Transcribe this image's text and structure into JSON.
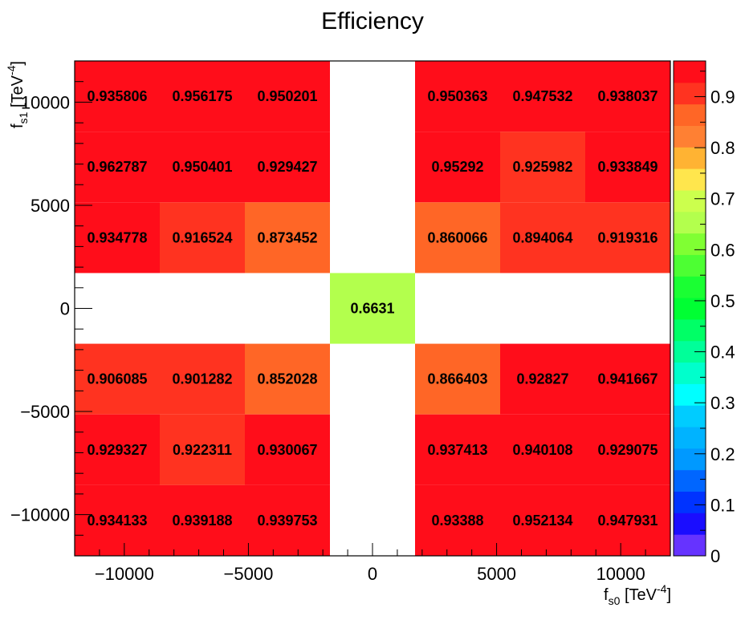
{
  "chart_data": {
    "type": "heatmap",
    "title": "Efficiency",
    "xlabel": "f_{s0} [TeV^{-4}]",
    "ylabel": "f_{s1} [TeV^{-4}]",
    "xlabel_parts": {
      "main": "f",
      "sub": "s0",
      "bracket": " [TeV",
      "sup": "-4",
      "close": "]"
    },
    "ylabel_parts": {
      "main": "f",
      "sub": "s1",
      "bracket": " [TeV",
      "sup": "-4",
      "close": "]"
    },
    "xlim": [
      -12000,
      12000
    ],
    "ylim": [
      -12000,
      12000
    ],
    "zlim": [
      0,
      0.97
    ],
    "x_ticks": [
      -10000,
      -5000,
      0,
      5000,
      10000
    ],
    "x_tick_labels": [
      "−10000",
      "−5000",
      "0",
      "5000",
      "10000"
    ],
    "y_ticks": [
      -10000,
      -5000,
      0,
      5000,
      10000
    ],
    "y_tick_labels": [
      "−10000",
      "−5000",
      "0",
      "5000",
      "10000"
    ],
    "z_ticks": [
      0,
      0.1,
      0.2,
      0.3,
      0.4,
      0.5,
      0.6,
      0.7,
      0.8,
      0.9
    ],
    "z_tick_labels": [
      "0",
      "0.1",
      "0.2",
      "0.3",
      "0.4",
      "0.5",
      "0.6",
      "0.7",
      "0.8",
      "0.9"
    ],
    "x_bin_edges": [
      -12000,
      -8571.43,
      -5142.86,
      -1714.29,
      1714.29,
      5142.86,
      8571.43,
      12000
    ],
    "y_bin_edges": [
      -12000,
      -8571.43,
      -5142.86,
      -1714.29,
      1714.29,
      5142.86,
      8571.43,
      12000
    ],
    "cells": [
      {
        "xbin": 0,
        "ybin": 6,
        "value": 0.935806,
        "label": "0.935806"
      },
      {
        "xbin": 1,
        "ybin": 6,
        "value": 0.956175,
        "label": "0.956175"
      },
      {
        "xbin": 2,
        "ybin": 6,
        "value": 0.950201,
        "label": "0.950201"
      },
      {
        "xbin": 4,
        "ybin": 6,
        "value": 0.950363,
        "label": "0.950363"
      },
      {
        "xbin": 5,
        "ybin": 6,
        "value": 0.947532,
        "label": "0.947532"
      },
      {
        "xbin": 6,
        "ybin": 6,
        "value": 0.938037,
        "label": "0.938037"
      },
      {
        "xbin": 0,
        "ybin": 5,
        "value": 0.962787,
        "label": "0.962787"
      },
      {
        "xbin": 1,
        "ybin": 5,
        "value": 0.950401,
        "label": "0.950401"
      },
      {
        "xbin": 2,
        "ybin": 5,
        "value": 0.929427,
        "label": "0.929427"
      },
      {
        "xbin": 4,
        "ybin": 5,
        "value": 0.95292,
        "label": "0.95292"
      },
      {
        "xbin": 5,
        "ybin": 5,
        "value": 0.925982,
        "label": "0.925982"
      },
      {
        "xbin": 6,
        "ybin": 5,
        "value": 0.933849,
        "label": "0.933849"
      },
      {
        "xbin": 0,
        "ybin": 4,
        "value": 0.934778,
        "label": "0.934778"
      },
      {
        "xbin": 1,
        "ybin": 4,
        "value": 0.916524,
        "label": "0.916524"
      },
      {
        "xbin": 2,
        "ybin": 4,
        "value": 0.873452,
        "label": "0.873452"
      },
      {
        "xbin": 4,
        "ybin": 4,
        "value": 0.860066,
        "label": "0.860066"
      },
      {
        "xbin": 5,
        "ybin": 4,
        "value": 0.894064,
        "label": "0.894064"
      },
      {
        "xbin": 6,
        "ybin": 4,
        "value": 0.919316,
        "label": "0.919316"
      },
      {
        "xbin": 3,
        "ybin": 3,
        "value": 0.6631,
        "label": "0.6631"
      },
      {
        "xbin": 0,
        "ybin": 2,
        "value": 0.906085,
        "label": "0.906085"
      },
      {
        "xbin": 1,
        "ybin": 2,
        "value": 0.901282,
        "label": "0.901282"
      },
      {
        "xbin": 2,
        "ybin": 2,
        "value": 0.852028,
        "label": "0.852028"
      },
      {
        "xbin": 4,
        "ybin": 2,
        "value": 0.866403,
        "label": "0.866403"
      },
      {
        "xbin": 5,
        "ybin": 2,
        "value": 0.92827,
        "label": "0.92827"
      },
      {
        "xbin": 6,
        "ybin": 2,
        "value": 0.941667,
        "label": "0.941667"
      },
      {
        "xbin": 0,
        "ybin": 1,
        "value": 0.929327,
        "label": "0.929327"
      },
      {
        "xbin": 1,
        "ybin": 1,
        "value": 0.922311,
        "label": "0.922311"
      },
      {
        "xbin": 2,
        "ybin": 1,
        "value": 0.930067,
        "label": "0.930067"
      },
      {
        "xbin": 4,
        "ybin": 1,
        "value": 0.937413,
        "label": "0.937413"
      },
      {
        "xbin": 5,
        "ybin": 1,
        "value": 0.940108,
        "label": "0.940108"
      },
      {
        "xbin": 6,
        "ybin": 1,
        "value": 0.929075,
        "label": "0.929075"
      },
      {
        "xbin": 0,
        "ybin": 0,
        "value": 0.934133,
        "label": "0.934133"
      },
      {
        "xbin": 1,
        "ybin": 0,
        "value": 0.939188,
        "label": "0.939188"
      },
      {
        "xbin": 2,
        "ybin": 0,
        "value": 0.939753,
        "label": "0.939753"
      },
      {
        "xbin": 4,
        "ybin": 0,
        "value": 0.93388,
        "label": "0.93388"
      },
      {
        "xbin": 5,
        "ybin": 0,
        "value": 0.952134,
        "label": "0.952134"
      },
      {
        "xbin": 6,
        "ybin": 0,
        "value": 0.947931,
        "label": "0.947931"
      }
    ],
    "palette": [
      "#6633ff",
      "#1a0dff",
      "#0033ff",
      "#0066ff",
      "#0099ff",
      "#00b3ff",
      "#00ccff",
      "#00ffff",
      "#00ffcc",
      "#00ff99",
      "#00ff66",
      "#00ff33",
      "#1aff33",
      "#4dff33",
      "#80ff33",
      "#b3ff4d",
      "#ccff4d",
      "#ffe64d",
      "#ffb333",
      "#ff8033",
      "#ff6626",
      "#ff3320",
      "#ff0d1a"
    ],
    "grid": false,
    "legend": "colorbar-right"
  }
}
